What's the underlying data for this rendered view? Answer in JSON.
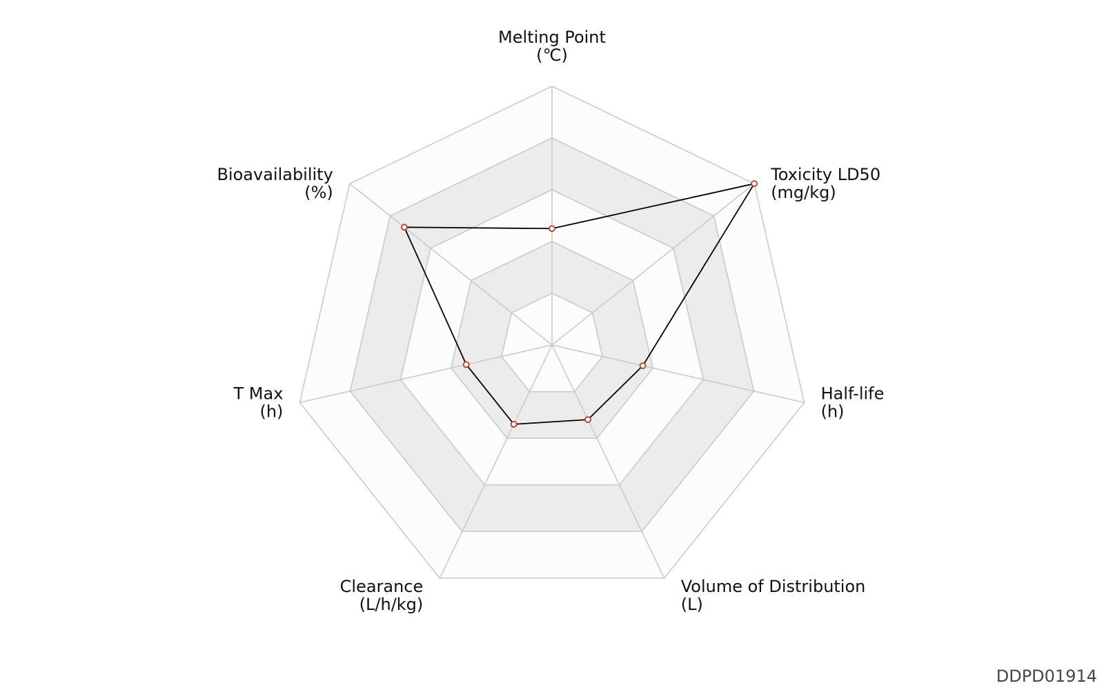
{
  "chart_data": {
    "type": "radar",
    "axes": [
      {
        "name": "Melting Point",
        "unit": "(℃)"
      },
      {
        "name": "Toxicity LD50",
        "unit": "(mg/kg)"
      },
      {
        "name": "Half-life",
        "unit": "(h)"
      },
      {
        "name": "Volume of Distribution",
        "unit": "(L)"
      },
      {
        "name": "Clearance",
        "unit": "(L/h/kg)"
      },
      {
        "name": "T Max",
        "unit": "(h)"
      },
      {
        "name": "Bioavailability",
        "unit": "(%)"
      }
    ],
    "ring_levels": 5,
    "value_range": [
      0,
      1
    ],
    "series": [
      {
        "values": [
          0.45,
          1.0,
          0.36,
          0.32,
          0.34,
          0.34,
          0.73
        ]
      }
    ],
    "colors": {
      "grid_line": "#c8c8c8",
      "band_light": "#fcfcfc",
      "band_dark": "#ececec",
      "series_line": "#000000",
      "marker_edge": "#c0392b",
      "marker_fill": "#ffffff"
    }
  },
  "watermark": "DDPD01914"
}
